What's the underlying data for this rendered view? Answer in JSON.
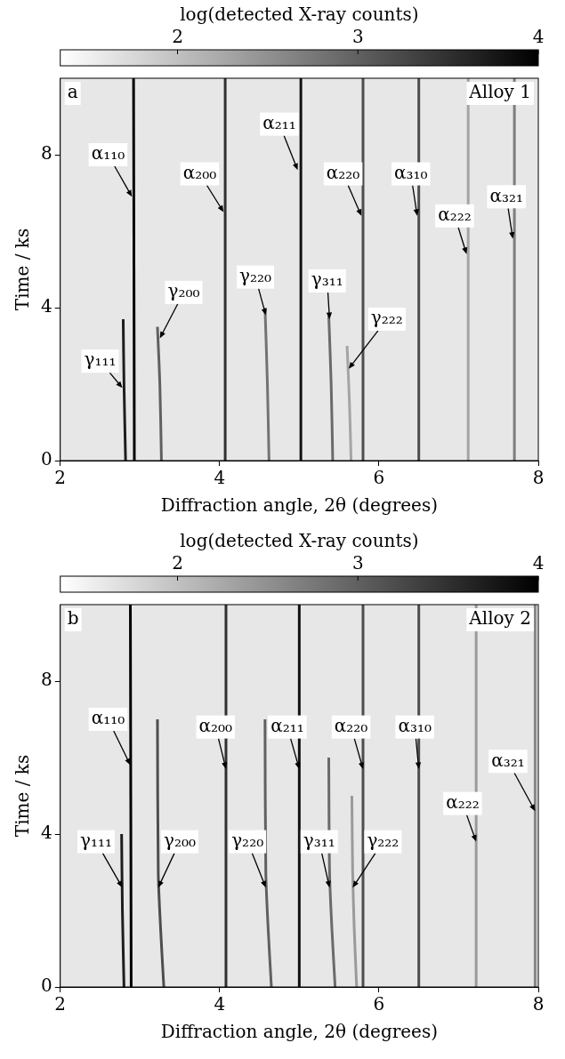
{
  "chart_data": [
    {
      "type": "line",
      "panel": "a",
      "title": "Alloy 1",
      "x_label": "Diffraction angle, 2θ (degrees)",
      "y_label": "Time / ks",
      "xlim": [
        2,
        8
      ],
      "xticks": [
        2,
        4,
        6,
        8
      ],
      "ylim": [
        0,
        10
      ],
      "yticks": [
        0,
        4,
        8
      ],
      "grid": false,
      "colorbar": {
        "label": "log(detected X-ray counts)",
        "range": [
          1.35,
          4
        ],
        "ticks": [
          2,
          3,
          4
        ]
      },
      "background": 1.6,
      "series": [
        {
          "name": "α₁₁₀",
          "intensity": 4.0,
          "time": [
            0,
            10
          ],
          "two_theta": [
            2.93,
            2.92
          ]
        },
        {
          "name": "γ₁₁₁",
          "intensity": 3.7,
          "time": [
            0,
            2,
            3.7
          ],
          "two_theta": [
            2.82,
            2.8,
            2.79
          ]
        },
        {
          "name": "γ₂₀₀",
          "intensity": 3.0,
          "time": [
            0,
            2,
            3.5
          ],
          "two_theta": [
            3.27,
            3.25,
            3.22
          ]
        },
        {
          "name": "α₂₀₀",
          "intensity": 3.5,
          "time": [
            0,
            10
          ],
          "two_theta": [
            4.07,
            4.07
          ]
        },
        {
          "name": "γ₂₂₀",
          "intensity": 2.8,
          "time": [
            0,
            2,
            4
          ],
          "two_theta": [
            4.62,
            4.6,
            4.57
          ]
        },
        {
          "name": "α₂₁₁",
          "intensity": 3.8,
          "time": [
            0,
            10
          ],
          "two_theta": [
            5.02,
            5.02
          ]
        },
        {
          "name": "γ₃₁₁",
          "intensity": 2.9,
          "time": [
            0,
            2,
            3.8
          ],
          "two_theta": [
            5.42,
            5.4,
            5.37
          ]
        },
        {
          "name": "γ₂₂₂",
          "intensity": 2.3,
          "time": [
            0,
            1.5,
            3
          ],
          "two_theta": [
            5.65,
            5.63,
            5.6
          ]
        },
        {
          "name": "α₂₂₀",
          "intensity": 3.2,
          "time": [
            0,
            10
          ],
          "two_theta": [
            5.8,
            5.8
          ]
        },
        {
          "name": "α₃₁₀",
          "intensity": 3.2,
          "time": [
            0,
            10
          ],
          "two_theta": [
            6.5,
            6.5
          ]
        },
        {
          "name": "α₂₂₂",
          "intensity": 2.3,
          "time": [
            0,
            10
          ],
          "two_theta": [
            7.12,
            7.12
          ]
        },
        {
          "name": "α₃₂₁",
          "intensity": 2.7,
          "time": [
            0,
            10
          ],
          "two_theta": [
            7.7,
            7.7
          ]
        }
      ],
      "annotations": [
        {
          "text": "α₁₁₀",
          "x": 2.6,
          "y": 8.0,
          "tip_x": 2.9,
          "tip_y": 6.9
        },
        {
          "text": "γ₁₁₁",
          "x": 2.5,
          "y": 2.6,
          "tip_x": 2.78,
          "tip_y": 1.9
        },
        {
          "text": "α₂₀₀",
          "x": 3.75,
          "y": 7.5,
          "tip_x": 4.05,
          "tip_y": 6.5
        },
        {
          "text": "γ₂₀₀",
          "x": 3.55,
          "y": 4.4,
          "tip_x": 3.25,
          "tip_y": 3.2
        },
        {
          "text": "γ₂₂₀",
          "x": 4.45,
          "y": 4.8,
          "tip_x": 4.58,
          "tip_y": 3.8
        },
        {
          "text": "α₂₁₁",
          "x": 4.75,
          "y": 8.8,
          "tip_x": 4.98,
          "tip_y": 7.6
        },
        {
          "text": "α₂₂₀",
          "x": 5.55,
          "y": 7.5,
          "tip_x": 5.78,
          "tip_y": 6.4
        },
        {
          "text": "γ₃₁₁",
          "x": 5.35,
          "y": 4.7,
          "tip_x": 5.38,
          "tip_y": 3.7
        },
        {
          "text": "γ₂₂₂",
          "x": 6.1,
          "y": 3.7,
          "tip_x": 5.62,
          "tip_y": 2.4
        },
        {
          "text": "α₃₁₀",
          "x": 6.4,
          "y": 7.5,
          "tip_x": 6.48,
          "tip_y": 6.4
        },
        {
          "text": "α₂₂₂",
          "x": 6.95,
          "y": 6.4,
          "tip_x": 7.1,
          "tip_y": 5.4
        },
        {
          "text": "α₃₂₁",
          "x": 7.6,
          "y": 6.9,
          "tip_x": 7.68,
          "tip_y": 5.8
        }
      ]
    },
    {
      "type": "line",
      "panel": "b",
      "title": "Alloy 2",
      "x_label": "Diffraction angle, 2θ (degrees)",
      "y_label": "Time / ks",
      "xlim": [
        2,
        8
      ],
      "xticks": [
        2,
        4,
        6,
        8
      ],
      "ylim": [
        0,
        10
      ],
      "yticks": [
        0,
        4,
        8
      ],
      "grid": false,
      "colorbar": {
        "label": "log(detected X-ray counts)",
        "range": [
          1.35,
          4
        ],
        "ticks": [
          2,
          3,
          4
        ]
      },
      "background": 1.6,
      "series": [
        {
          "name": "α₁₁₀",
          "intensity": 4.0,
          "time": [
            0,
            10
          ],
          "two_theta": [
            2.89,
            2.88
          ]
        },
        {
          "name": "γ₁₁₁",
          "intensity": 3.7,
          "time": [
            0,
            2,
            4
          ],
          "two_theta": [
            2.8,
            2.78,
            2.77
          ]
        },
        {
          "name": "γ₂₀₀",
          "intensity": 3.2,
          "time": [
            0,
            1.5,
            3,
            7
          ],
          "two_theta": [
            3.3,
            3.26,
            3.23,
            3.22
          ]
        },
        {
          "name": "α₂₀₀",
          "intensity": 3.5,
          "time": [
            0,
            10
          ],
          "two_theta": [
            4.08,
            4.08
          ]
        },
        {
          "name": "γ₂₂₀",
          "intensity": 3.0,
          "time": [
            0,
            1.5,
            3,
            7
          ],
          "two_theta": [
            4.65,
            4.61,
            4.58,
            4.57
          ]
        },
        {
          "name": "α₂₁₁",
          "intensity": 3.8,
          "time": [
            0,
            10
          ],
          "two_theta": [
            5.0,
            5.0
          ]
        },
        {
          "name": "γ₃₁₁",
          "intensity": 2.9,
          "time": [
            0,
            1.5,
            3,
            6
          ],
          "two_theta": [
            5.45,
            5.41,
            5.38,
            5.37
          ]
        },
        {
          "name": "γ₂₂₂",
          "intensity": 2.4,
          "time": [
            0,
            1.5,
            3,
            5
          ],
          "two_theta": [
            5.72,
            5.69,
            5.67,
            5.66
          ]
        },
        {
          "name": "α₂₂₀",
          "intensity": 3.2,
          "time": [
            0,
            10
          ],
          "two_theta": [
            5.8,
            5.8
          ]
        },
        {
          "name": "α₃₁₀",
          "intensity": 3.2,
          "time": [
            0,
            10
          ],
          "two_theta": [
            6.5,
            6.5
          ]
        },
        {
          "name": "α₂₂₂",
          "intensity": 2.4,
          "time": [
            0,
            10
          ],
          "two_theta": [
            7.22,
            7.22
          ]
        },
        {
          "name": "α₃₂₁",
          "intensity": 2.6,
          "time": [
            0,
            10
          ],
          "two_theta": [
            7.96,
            7.96
          ]
        }
      ],
      "annotations": [
        {
          "text": "α₁₁₀",
          "x": 2.6,
          "y": 7.0,
          "tip_x": 2.88,
          "tip_y": 5.8
        },
        {
          "text": "α₂₀₀",
          "x": 3.95,
          "y": 6.8,
          "tip_x": 4.08,
          "tip_y": 5.7
        },
        {
          "text": "α₂₁₁",
          "x": 4.85,
          "y": 6.8,
          "tip_x": 5.0,
          "tip_y": 5.7
        },
        {
          "text": "α₂₂₀",
          "x": 5.65,
          "y": 6.8,
          "tip_x": 5.8,
          "tip_y": 5.7
        },
        {
          "text": "α₃₁₀",
          "x": 6.45,
          "y": 6.8,
          "tip_x": 6.5,
          "tip_y": 5.7
        },
        {
          "text": "α₂₂₂",
          "x": 7.05,
          "y": 4.8,
          "tip_x": 7.22,
          "tip_y": 3.8
        },
        {
          "text": "α₃₂₁",
          "x": 7.62,
          "y": 5.9,
          "tip_x": 7.96,
          "tip_y": 4.6
        },
        {
          "text": "γ₁₁₁",
          "x": 2.45,
          "y": 3.8,
          "tip_x": 2.78,
          "tip_y": 2.6
        },
        {
          "text": "γ₂₀₀",
          "x": 3.5,
          "y": 3.8,
          "tip_x": 3.23,
          "tip_y": 2.6
        },
        {
          "text": "γ₂₂₀",
          "x": 4.35,
          "y": 3.8,
          "tip_x": 4.58,
          "tip_y": 2.6
        },
        {
          "text": "γ₃₁₁",
          "x": 5.25,
          "y": 3.8,
          "tip_x": 5.38,
          "tip_y": 2.6
        },
        {
          "text": "γ₂₂₂",
          "x": 6.05,
          "y": 3.8,
          "tip_x": 5.67,
          "tip_y": 2.6
        }
      ]
    }
  ]
}
